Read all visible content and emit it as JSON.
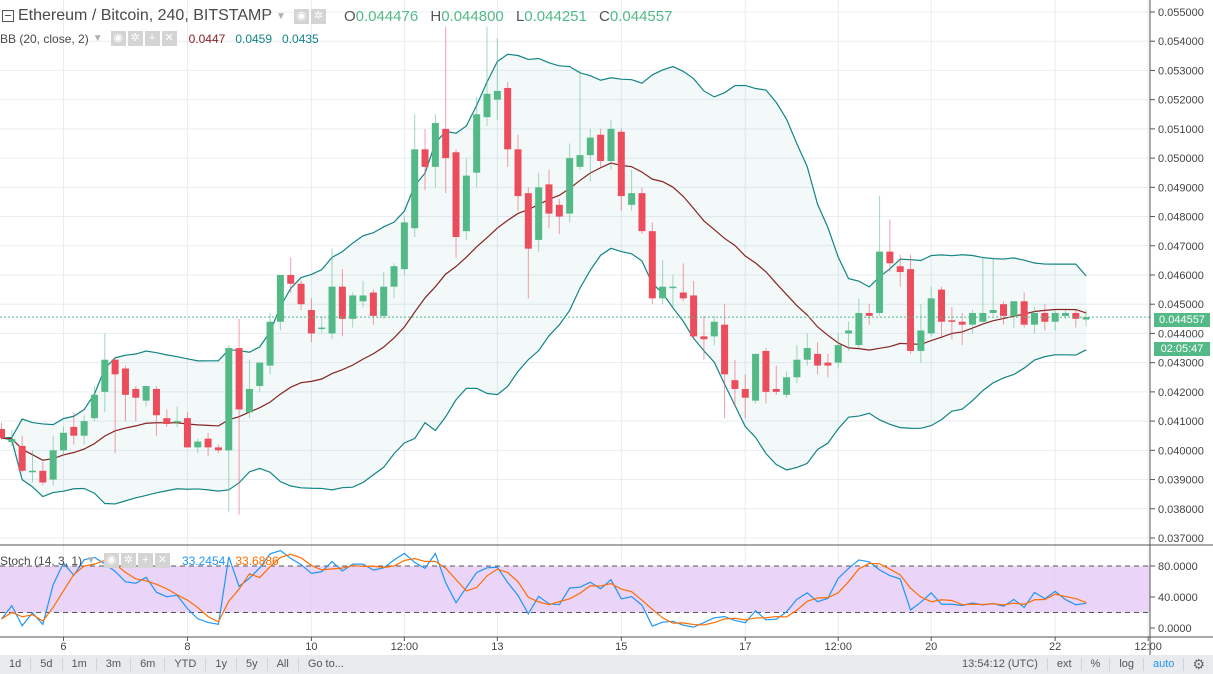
{
  "header": {
    "symbol": "Ethereum / Bitcoin, 240, BITSTAMP",
    "ohlc": {
      "o_label": "O",
      "o": "0.044476",
      "h_label": "H",
      "h": "0.044800",
      "l_label": "L",
      "l": "0.044251",
      "c_label": "C",
      "c": "0.044557"
    },
    "bb": {
      "label": "BB (20, close, 2)",
      "basis": "0.0447",
      "upper": "0.0459",
      "lower": "0.0435"
    },
    "stoch": {
      "label": "Stoch (14, 3, 1)",
      "k": "33.2454",
      "d": "33.6886"
    },
    "icons": [
      "eye-icon",
      "gear-icon",
      "plus-icon",
      "close-icon"
    ]
  },
  "last_price_label": "0.044557",
  "countdown_label": "02:05:47",
  "toolbar": {
    "ranges": [
      "1d",
      "5d",
      "1m",
      "3m",
      "6m",
      "YTD",
      "1y",
      "5y",
      "All",
      "Go to..."
    ],
    "clock": "13:54:12 (UTC)",
    "options": [
      "ext",
      "%",
      "log",
      "auto"
    ]
  },
  "colors": {
    "up": "#53b987",
    "down": "#eb4d5c",
    "bb_band": "#138484",
    "bb_basis": "#872323",
    "stoch_k": "#2196f3",
    "stoch_d": "#ff6d00",
    "stoch_fill": "#e6cdf7",
    "last_price": "#53b987"
  },
  "chart_data": [
    {
      "type": "candlestick",
      "interval_minutes": 240,
      "x_start": {
        "day": 5,
        "hour": 0
      },
      "ylim": [
        0.03676,
        0.05541
      ],
      "grid": true,
      "y_ticks": [
        "0.055000",
        "0.054000",
        "0.053000",
        "0.052000",
        "0.051000",
        "0.050000",
        "0.049000",
        "0.048000",
        "0.047000",
        "0.046000",
        "0.045000",
        "0.044000",
        "0.043000",
        "0.042000",
        "0.041000",
        "0.040000",
        "0.039000",
        "0.038000",
        "0.037000"
      ],
      "x_ticks": [
        {
          "label": "6",
          "day": 6,
          "hour": 0
        },
        {
          "label": "8",
          "day": 8,
          "hour": 0
        },
        {
          "label": "10",
          "day": 10,
          "hour": 0
        },
        {
          "label": "12:00",
          "day": 11,
          "hour": 12
        },
        {
          "label": "13",
          "day": 13,
          "hour": 0
        },
        {
          "label": "15",
          "day": 15,
          "hour": 0
        },
        {
          "label": "17",
          "day": 17,
          "hour": 0
        },
        {
          "label": "12:00",
          "day": 18,
          "hour": 12
        },
        {
          "label": "20",
          "day": 20,
          "hour": 0
        },
        {
          "label": "22",
          "day": 22,
          "hour": 0
        },
        {
          "label": "12:00",
          "day": 23,
          "hour": 12
        }
      ],
      "last_price": 0.044557,
      "overlay": {
        "name": "BB",
        "length": 20,
        "source": "close",
        "mult": 2
      },
      "ohlc": [
        [
          0.04073,
          0.04095,
          0.04035,
          0.04042
        ],
        [
          0.04028,
          0.0407,
          0.04015,
          0.04038
        ],
        [
          0.04015,
          0.0405,
          0.03925,
          0.0393
        ],
        [
          0.0393,
          0.04,
          0.0389,
          0.0393
        ],
        [
          0.0393,
          0.0396,
          0.0388,
          0.0389
        ],
        [
          0.039,
          0.0405,
          0.0388,
          0.04
        ],
        [
          0.04,
          0.0408,
          0.0398,
          0.0406
        ],
        [
          0.0408,
          0.0413,
          0.0402,
          0.0405
        ],
        [
          0.0405,
          0.0412,
          0.0402,
          0.041
        ],
        [
          0.0411,
          0.0422,
          0.041,
          0.0419
        ],
        [
          0.042,
          0.044,
          0.0413,
          0.0431
        ],
        [
          0.0431,
          0.0432,
          0.0399,
          0.0426
        ],
        [
          0.0428,
          0.0429,
          0.041,
          0.0419
        ],
        [
          0.0421,
          0.0422,
          0.041,
          0.0418
        ],
        [
          0.0417,
          0.0422,
          0.0415,
          0.0422
        ],
        [
          0.0421,
          0.0422,
          0.0405,
          0.0412
        ],
        [
          0.0411,
          0.0414,
          0.0408,
          0.0409
        ],
        [
          0.041,
          0.0415,
          0.0408,
          0.041
        ],
        [
          0.0411,
          0.0413,
          0.0401,
          0.0401
        ],
        [
          0.0401,
          0.0404,
          0.0399,
          0.0403
        ],
        [
          0.0404,
          0.0406,
          0.0398,
          0.0401
        ],
        [
          0.0401,
          0.0402,
          0.0399,
          0.04
        ],
        [
          0.04,
          0.0436,
          0.0379,
          0.0435
        ],
        [
          0.0435,
          0.0445,
          0.0378,
          0.0414
        ],
        [
          0.0413,
          0.0431,
          0.0411,
          0.0421
        ],
        [
          0.0422,
          0.043,
          0.042,
          0.043
        ],
        [
          0.0429,
          0.0447,
          0.0426,
          0.0444
        ],
        [
          0.0444,
          0.046,
          0.0441,
          0.046
        ],
        [
          0.046,
          0.0466,
          0.0454,
          0.0457
        ],
        [
          0.0457,
          0.0458,
          0.0448,
          0.045
        ],
        [
          0.0448,
          0.0452,
          0.0437,
          0.044
        ],
        [
          0.0442,
          0.0446,
          0.044,
          0.0442
        ],
        [
          0.044,
          0.0469,
          0.0438,
          0.0456
        ],
        [
          0.0456,
          0.0462,
          0.0439,
          0.0445
        ],
        [
          0.0445,
          0.0454,
          0.0442,
          0.0453
        ],
        [
          0.0451,
          0.0458,
          0.0449,
          0.0453
        ],
        [
          0.0454,
          0.0455,
          0.0443,
          0.0446
        ],
        [
          0.0446,
          0.0461,
          0.0445,
          0.0456
        ],
        [
          0.0456,
          0.0464,
          0.0452,
          0.0463
        ],
        [
          0.0462,
          0.048,
          0.046,
          0.0478
        ],
        [
          0.0476,
          0.0515,
          0.0473,
          0.0503
        ],
        [
          0.0503,
          0.051,
          0.0489,
          0.0497
        ],
        [
          0.0497,
          0.0515,
          0.049,
          0.0512
        ],
        [
          0.051,
          0.0545,
          0.0488,
          0.05
        ],
        [
          0.0502,
          0.0503,
          0.0466,
          0.0473
        ],
        [
          0.0475,
          0.05,
          0.0472,
          0.0494
        ],
        [
          0.0495,
          0.0521,
          0.049,
          0.0515
        ],
        [
          0.0514,
          0.0545,
          0.0511,
          0.0522
        ],
        [
          0.052,
          0.0541,
          0.0513,
          0.0523
        ],
        [
          0.0524,
          0.0526,
          0.0497,
          0.0503
        ],
        [
          0.0503,
          0.0508,
          0.0482,
          0.0487
        ],
        [
          0.0488,
          0.049,
          0.0452,
          0.0469
        ],
        [
          0.0472,
          0.0495,
          0.0468,
          0.049
        ],
        [
          0.0491,
          0.0496,
          0.0476,
          0.0481
        ],
        [
          0.0484,
          0.0486,
          0.0474,
          0.048
        ],
        [
          0.0481,
          0.0505,
          0.0478,
          0.05
        ],
        [
          0.0497,
          0.053,
          0.0496,
          0.0501
        ],
        [
          0.0501,
          0.051,
          0.0492,
          0.0507
        ],
        [
          0.0508,
          0.051,
          0.0497,
          0.0499
        ],
        [
          0.0499,
          0.0513,
          0.0496,
          0.051
        ],
        [
          0.0509,
          0.051,
          0.0482,
          0.0487
        ],
        [
          0.0484,
          0.0496,
          0.0482,
          0.0488
        ],
        [
          0.0488,
          0.049,
          0.0474,
          0.0475
        ],
        [
          0.0475,
          0.0478,
          0.045,
          0.0452
        ],
        [
          0.0452,
          0.0465,
          0.045,
          0.0456
        ],
        [
          0.0456,
          0.046,
          0.0449,
          0.0456
        ],
        [
          0.0454,
          0.0464,
          0.0451,
          0.0452
        ],
        [
          0.0453,
          0.0458,
          0.0438,
          0.0439
        ],
        [
          0.0439,
          0.0446,
          0.0431,
          0.0438
        ],
        [
          0.0439,
          0.0446,
          0.0436,
          0.0444
        ],
        [
          0.0443,
          0.045,
          0.0411,
          0.0426
        ],
        [
          0.0424,
          0.0431,
          0.0415,
          0.0421
        ],
        [
          0.0421,
          0.0426,
          0.0411,
          0.0418
        ],
        [
          0.0417,
          0.0433,
          0.0416,
          0.0433
        ],
        [
          0.0434,
          0.0435,
          0.0416,
          0.042
        ],
        [
          0.0421,
          0.0429,
          0.0419,
          0.042
        ],
        [
          0.0419,
          0.0427,
          0.0418,
          0.0425
        ],
        [
          0.0425,
          0.0436,
          0.0423,
          0.0431
        ],
        [
          0.0431,
          0.044,
          0.0429,
          0.0435
        ],
        [
          0.0433,
          0.0437,
          0.0426,
          0.0429
        ],
        [
          0.043,
          0.0433,
          0.0425,
          0.0429
        ],
        [
          0.043,
          0.044,
          0.0428,
          0.0436
        ],
        [
          0.044,
          0.0444,
          0.0434,
          0.0441
        ],
        [
          0.0436,
          0.0452,
          0.0435,
          0.0447
        ],
        [
          0.0447,
          0.045,
          0.0443,
          0.0446
        ],
        [
          0.0447,
          0.0487,
          0.0446,
          0.0468
        ],
        [
          0.0468,
          0.0479,
          0.0461,
          0.0464
        ],
        [
          0.0463,
          0.0467,
          0.0456,
          0.0461
        ],
        [
          0.0462,
          0.0467,
          0.0433,
          0.0434
        ],
        [
          0.0434,
          0.045,
          0.043,
          0.0441
        ],
        [
          0.044,
          0.0456,
          0.0439,
          0.0452
        ],
        [
          0.0455,
          0.0456,
          0.0439,
          0.0444
        ],
        [
          0.04445,
          0.0449,
          0.0438,
          0.0444
        ],
        [
          0.0444,
          0.0447,
          0.0436,
          0.0443
        ],
        [
          0.0443,
          0.0448,
          0.044,
          0.0447
        ],
        [
          0.0444,
          0.0466,
          0.0443,
          0.0447
        ],
        [
          0.0447,
          0.0466,
          0.0446,
          0.0448
        ],
        [
          0.045,
          0.0451,
          0.0443,
          0.0446
        ],
        [
          0.0446,
          0.0451,
          0.0442,
          0.0451
        ],
        [
          0.0451,
          0.0454,
          0.0442,
          0.0443
        ],
        [
          0.0443,
          0.0449,
          0.044,
          0.0447
        ],
        [
          0.0447,
          0.045,
          0.0441,
          0.0444
        ],
        [
          0.0444,
          0.0448,
          0.0441,
          0.0447
        ],
        [
          0.0446,
          0.0448,
          0.0445,
          0.0447
        ],
        [
          0.0447,
          0.0448,
          0.0442,
          0.0445
        ],
        [
          0.044476,
          0.0448,
          0.044251,
          0.044557
        ]
      ]
    },
    {
      "type": "line",
      "indicator": "Stoch",
      "params": {
        "k_length": 14,
        "k_smoothing": 1,
        "d_smoothing": 3
      },
      "ylim": [
        -11.6,
        107.1
      ],
      "y_ticks": [
        "80.0000",
        "40.0000",
        "0.0000"
      ],
      "bands": [
        20,
        80
      ]
    }
  ]
}
